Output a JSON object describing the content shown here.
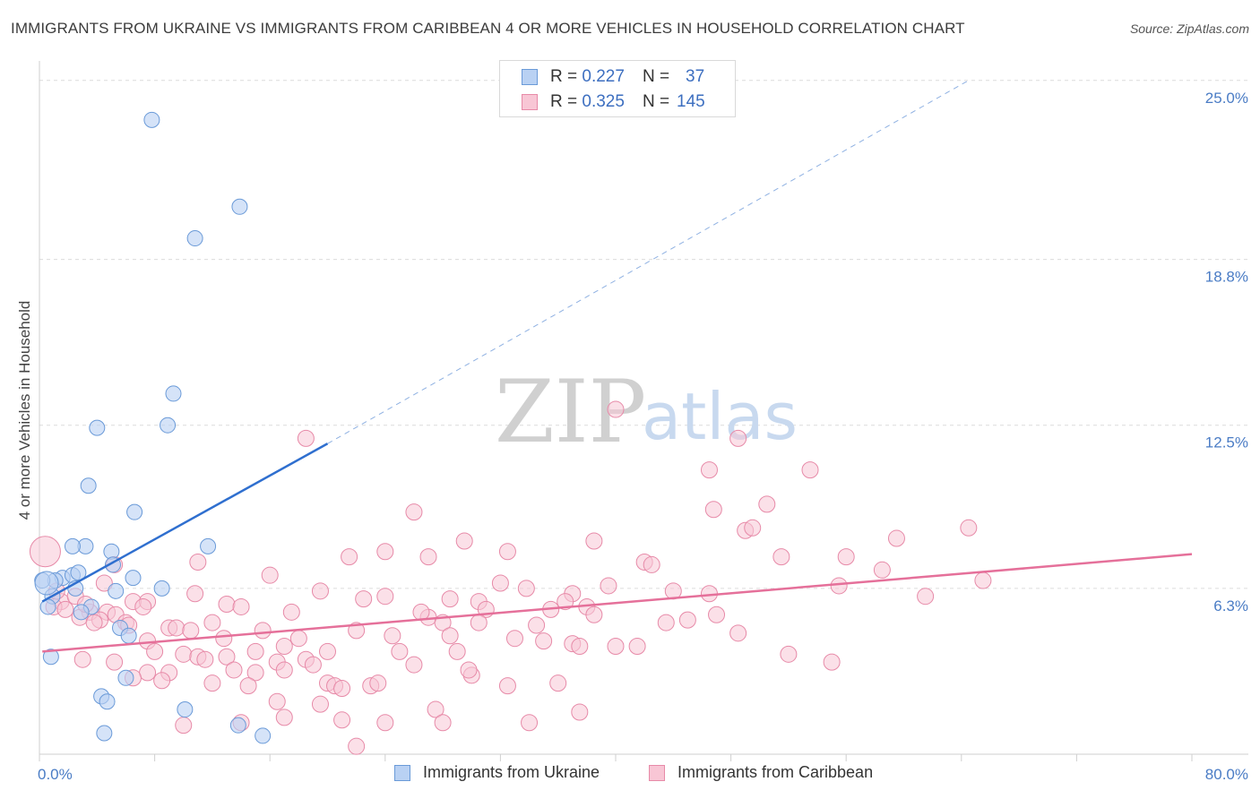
{
  "title": "IMMIGRANTS FROM UKRAINE VS IMMIGRANTS FROM CARIBBEAN 4 OR MORE VEHICLES IN HOUSEHOLD CORRELATION CHART",
  "source": "Source: ZipAtlas.com",
  "watermark": {
    "zip": "ZIP",
    "atlas": "atlas"
  },
  "legend": {
    "r_label": "R =",
    "n_label": "N =",
    "rows": [
      {
        "r": "0.227",
        "n": "37"
      },
      {
        "r": "0.325",
        "n": "145"
      }
    ]
  },
  "bottom_legend": [
    "Immigrants from Ukraine",
    "Immigrants from Caribbean"
  ],
  "colors": {
    "ukraine_fill": "#b9d1f3",
    "ukraine_stroke": "#6a9ad8",
    "ukraine_line": "#2f6fcf",
    "caribbean_fill": "#f8c6d5",
    "caribbean_stroke": "#e78aa8",
    "caribbean_line": "#e5709a",
    "grid": "#dcdcdc",
    "axis_text": "#4a7cc5"
  },
  "chart_data": {
    "type": "scatter",
    "title": "IMMIGRANTS FROM UKRAINE VS IMMIGRANTS FROM CARIBBEAN 4 OR MORE VEHICLES IN HOUSEHOLD CORRELATION CHART",
    "xlabel": "",
    "ylabel": "4 or more Vehicles in Household",
    "xlim": [
      0,
      80
    ],
    "ylim": [
      0,
      26
    ],
    "x_tick_labels": [
      "0.0%",
      "80.0%"
    ],
    "y_ticks": [
      6.3,
      12.5,
      18.8,
      25.0
    ],
    "y_tick_labels": [
      "6.3%",
      "12.5%",
      "18.8%",
      "25.0%"
    ],
    "grid": true,
    "series": [
      {
        "name": "Immigrants from Ukraine",
        "R": 0.227,
        "N": 37,
        "trend": {
          "x0": 0.2,
          "y0": 5.8,
          "x1": 20.0,
          "y1": 11.8,
          "dash_x1": 64.5,
          "dash_y1": 25.6
        },
        "points": [
          [
            7.8,
            24.1
          ],
          [
            13.9,
            20.8
          ],
          [
            10.8,
            19.6
          ],
          [
            9.3,
            13.7
          ],
          [
            8.9,
            12.5
          ],
          [
            4.0,
            12.4
          ],
          [
            3.4,
            10.2
          ],
          [
            6.6,
            9.2
          ],
          [
            3.2,
            7.9
          ],
          [
            2.3,
            7.9
          ],
          [
            11.7,
            7.9
          ],
          [
            5.0,
            7.7
          ],
          [
            5.1,
            7.2
          ],
          [
            1.6,
            6.7
          ],
          [
            2.3,
            6.8
          ],
          [
            2.7,
            6.9
          ],
          [
            6.5,
            6.7
          ],
          [
            1.1,
            6.6
          ],
          [
            0.2,
            6.6
          ],
          [
            2.5,
            6.3
          ],
          [
            5.3,
            6.2
          ],
          [
            8.5,
            6.3
          ],
          [
            0.9,
            6.0
          ],
          [
            3.6,
            5.6
          ],
          [
            0.6,
            5.6
          ],
          [
            2.9,
            5.4
          ],
          [
            5.6,
            4.8
          ],
          [
            6.2,
            4.5
          ],
          [
            0.8,
            3.7
          ],
          [
            6.0,
            2.9
          ],
          [
            4.3,
            2.2
          ],
          [
            4.7,
            2.0
          ],
          [
            10.1,
            1.7
          ],
          [
            13.8,
            1.1
          ],
          [
            4.5,
            0.8
          ],
          [
            15.5,
            0.7
          ],
          [
            0.5,
            6.5
          ]
        ]
      },
      {
        "name": "Immigrants from Caribbean",
        "R": 0.325,
        "N": 145,
        "trend": {
          "x0": 0.2,
          "y0": 3.9,
          "x1": 80.0,
          "y1": 7.6
        },
        "points": [
          [
            40.0,
            13.1
          ],
          [
            18.5,
            12.0
          ],
          [
            48.5,
            12.0
          ],
          [
            46.5,
            10.8
          ],
          [
            53.5,
            10.8
          ],
          [
            26.0,
            9.2
          ],
          [
            46.8,
            9.3
          ],
          [
            50.5,
            9.5
          ],
          [
            64.5,
            8.6
          ],
          [
            49.0,
            8.5
          ],
          [
            49.5,
            8.6
          ],
          [
            29.5,
            8.1
          ],
          [
            38.5,
            8.1
          ],
          [
            24.0,
            7.7
          ],
          [
            32.5,
            7.7
          ],
          [
            21.5,
            7.5
          ],
          [
            27.0,
            7.5
          ],
          [
            42.0,
            7.3
          ],
          [
            42.5,
            7.2
          ],
          [
            56.0,
            7.5
          ],
          [
            11.0,
            7.3
          ],
          [
            5.2,
            7.2
          ],
          [
            58.5,
            7.0
          ],
          [
            16.0,
            6.8
          ],
          [
            4.5,
            6.5
          ],
          [
            32.0,
            6.5
          ],
          [
            39.5,
            6.4
          ],
          [
            55.5,
            6.4
          ],
          [
            65.5,
            6.6
          ],
          [
            10.8,
            6.1
          ],
          [
            24.0,
            6.0
          ],
          [
            37.0,
            6.1
          ],
          [
            44.0,
            6.2
          ],
          [
            46.5,
            6.1
          ],
          [
            28.5,
            5.9
          ],
          [
            6.5,
            5.8
          ],
          [
            13.0,
            5.7
          ],
          [
            22.5,
            5.9
          ],
          [
            30.5,
            5.8
          ],
          [
            38.0,
            5.6
          ],
          [
            61.5,
            6.0
          ],
          [
            1.5,
            5.8
          ],
          [
            1.0,
            5.6
          ],
          [
            14.0,
            5.6
          ],
          [
            17.5,
            5.4
          ],
          [
            27.0,
            5.2
          ],
          [
            31.0,
            5.5
          ],
          [
            35.5,
            5.5
          ],
          [
            1.8,
            5.5
          ],
          [
            3.5,
            5.4
          ],
          [
            4.7,
            5.4
          ],
          [
            5.3,
            5.3
          ],
          [
            2.8,
            5.2
          ],
          [
            4.2,
            5.1
          ],
          [
            3.8,
            5.0
          ],
          [
            6.0,
            5.0
          ],
          [
            12.0,
            5.0
          ],
          [
            6.2,
            4.9
          ],
          [
            9.0,
            4.8
          ],
          [
            26.5,
            5.4
          ],
          [
            28.0,
            5.0
          ],
          [
            30.5,
            5.0
          ],
          [
            38.5,
            5.3
          ],
          [
            47.0,
            5.3
          ],
          [
            34.5,
            4.9
          ],
          [
            9.5,
            4.8
          ],
          [
            10.5,
            4.7
          ],
          [
            12.8,
            4.4
          ],
          [
            15.5,
            4.7
          ],
          [
            18.0,
            4.4
          ],
          [
            22.0,
            4.7
          ],
          [
            24.5,
            4.5
          ],
          [
            28.5,
            4.5
          ],
          [
            33.0,
            4.4
          ],
          [
            35.0,
            4.3
          ],
          [
            37.0,
            4.2
          ],
          [
            37.5,
            4.1
          ],
          [
            40.0,
            4.1
          ],
          [
            41.5,
            4.1
          ],
          [
            48.5,
            4.6
          ],
          [
            7.5,
            4.3
          ],
          [
            5.2,
            3.5
          ],
          [
            3.0,
            3.6
          ],
          [
            8.0,
            3.9
          ],
          [
            10.0,
            3.8
          ],
          [
            11.0,
            3.7
          ],
          [
            11.5,
            3.6
          ],
          [
            13.0,
            3.7
          ],
          [
            15.0,
            3.9
          ],
          [
            17.0,
            4.1
          ],
          [
            18.5,
            3.6
          ],
          [
            20.0,
            3.9
          ],
          [
            25.0,
            3.9
          ],
          [
            29.0,
            3.9
          ],
          [
            16.5,
            3.5
          ],
          [
            19.0,
            3.4
          ],
          [
            7.5,
            3.1
          ],
          [
            9.0,
            3.1
          ],
          [
            13.5,
            3.2
          ],
          [
            15.0,
            3.1
          ],
          [
            17.0,
            3.2
          ],
          [
            26.0,
            3.4
          ],
          [
            30.0,
            3.0
          ],
          [
            29.8,
            3.2
          ],
          [
            6.5,
            2.9
          ],
          [
            8.5,
            2.8
          ],
          [
            12.0,
            2.7
          ],
          [
            14.5,
            2.6
          ],
          [
            20.0,
            2.7
          ],
          [
            20.5,
            2.6
          ],
          [
            21.0,
            2.5
          ],
          [
            23.0,
            2.6
          ],
          [
            23.5,
            2.7
          ],
          [
            32.5,
            2.6
          ],
          [
            36.0,
            2.7
          ],
          [
            16.5,
            2.0
          ],
          [
            19.5,
            1.9
          ],
          [
            27.5,
            1.7
          ],
          [
            37.5,
            1.6
          ],
          [
            17.0,
            1.4
          ],
          [
            21.0,
            1.3
          ],
          [
            24.0,
            1.2
          ],
          [
            28.0,
            1.2
          ],
          [
            34.0,
            1.2
          ],
          [
            10.0,
            1.1
          ],
          [
            14.0,
            1.2
          ],
          [
            22.0,
            0.3
          ],
          [
            52.0,
            3.8
          ],
          [
            55.0,
            3.5
          ],
          [
            59.5,
            8.2
          ],
          [
            7.5,
            5.8
          ],
          [
            45.0,
            5.1
          ],
          [
            51.5,
            7.5
          ],
          [
            43.5,
            5.0
          ],
          [
            36.5,
            5.8
          ],
          [
            1.2,
            6.2
          ],
          [
            2.5,
            6.0
          ],
          [
            0.4,
            7.7
          ],
          [
            3.2,
            5.7
          ],
          [
            7.2,
            5.6
          ],
          [
            19.5,
            6.2
          ],
          [
            33.8,
            6.3
          ]
        ]
      }
    ]
  }
}
